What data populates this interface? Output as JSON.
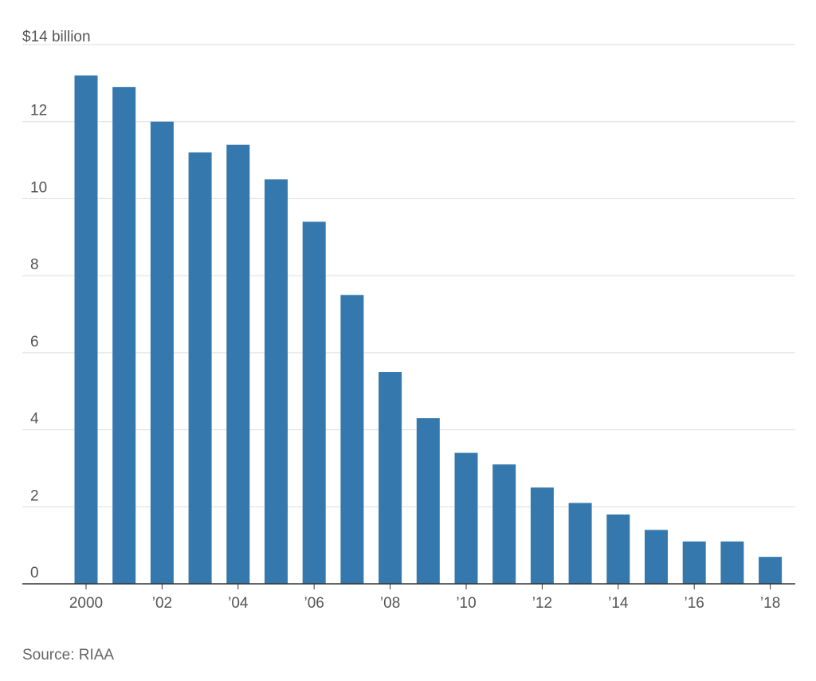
{
  "chart_data": {
    "type": "bar",
    "title": "",
    "xlabel": "",
    "ylabel": "",
    "unit_label": "$14 billion",
    "ylim": [
      0,
      14
    ],
    "y_ticks": [
      {
        "value": 0,
        "label": "0"
      },
      {
        "value": 2,
        "label": "2"
      },
      {
        "value": 4,
        "label": "4"
      },
      {
        "value": 6,
        "label": "6"
      },
      {
        "value": 8,
        "label": "8"
      },
      {
        "value": 10,
        "label": "10"
      },
      {
        "value": 12,
        "label": "12"
      }
    ],
    "categories": [
      "2000",
      "2001",
      "2002",
      "2003",
      "2004",
      "2005",
      "2006",
      "2007",
      "2008",
      "2009",
      "2010",
      "2011",
      "2012",
      "2013",
      "2014",
      "2015",
      "2016",
      "2017",
      "2018"
    ],
    "x_tick_labels": [
      "2000",
      "",
      "’02",
      "",
      "’04",
      "",
      "’06",
      "",
      "’08",
      "",
      "’10",
      "",
      "’12",
      "",
      "’14",
      "",
      "’16",
      "",
      "’18"
    ],
    "values": [
      13.2,
      12.9,
      12.0,
      11.2,
      11.4,
      10.5,
      9.4,
      7.5,
      5.5,
      4.3,
      3.4,
      3.1,
      2.5,
      2.1,
      1.8,
      1.4,
      1.1,
      1.1,
      0.7
    ],
    "grid": true,
    "legend": "none",
    "colors": {
      "bar": "#3478ad",
      "grid": "#dddddd",
      "axis": "#333333",
      "text": "#555555"
    }
  },
  "source": "Source: RIAA"
}
